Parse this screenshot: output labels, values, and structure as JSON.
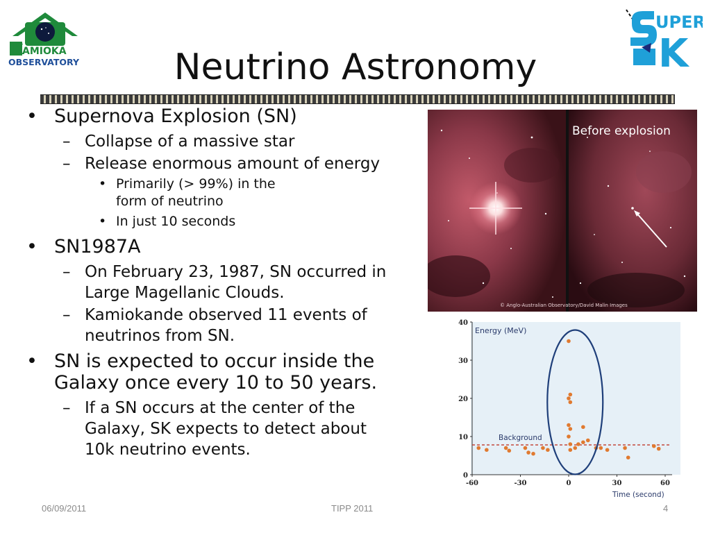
{
  "slide": {
    "title": "Neutrino Astronomy",
    "footer_date": "06/09/2011",
    "footer_center": "TIPP 2011",
    "page_number": "4"
  },
  "logos": {
    "left_text_1": "AMIOKA",
    "left_text_2": "OBSERVATORY",
    "right_text_1": "UPER",
    "right_text_2": "K"
  },
  "bullets": {
    "sn": "Supernova Explosion (SN)",
    "sn_sub1": "Collapse of a massive star",
    "sn_sub2": "Release enormous amount of energy",
    "sn_sub2_a": "Primarily (> 99%) in the form of neutrino",
    "sn_sub2_b": "In just 10 seconds",
    "sn1987a": "SN1987A",
    "sn1987a_sub1": "On February 23, 1987, SN occurred in Large Magellanic Clouds.",
    "sn1987a_sub2": "Kamiokande observed 11 events of neutrinos from SN.",
    "galaxy": "SN is expected to occur inside the Galaxy once every 10 to 50 years.",
    "galaxy_sub1": "If a SN occurs at the center of the Galaxy, SK expects to detect about 10k neutrino events."
  },
  "photo": {
    "label": "Before explosion",
    "credit": "© Anglo-Australian Observatory/David Malin Images"
  },
  "chart_data": {
    "type": "scatter",
    "ylabel": "Energy (MeV)",
    "xlabel": "Time (second)",
    "xlim": [
      -60,
      60
    ],
    "ylim": [
      0,
      40
    ],
    "xticks": [
      "-60",
      "-30",
      "0",
      "30",
      "60"
    ],
    "yticks": [
      "0",
      "10",
      "20",
      "30",
      "40"
    ],
    "background_label": "Background",
    "background_level": 7.8,
    "colors": {
      "points": "#e07a30",
      "background_line": "#c0392b",
      "ellipse": "#1f3f7a",
      "bg": "#e6f0f7"
    },
    "points": [
      [
        -56,
        7
      ],
      [
        -51,
        6.5
      ],
      [
        -39,
        7
      ],
      [
        -37,
        6.3
      ],
      [
        -27,
        7
      ],
      [
        -25,
        5.8
      ],
      [
        -22,
        5.5
      ],
      [
        -16,
        7
      ],
      [
        -13,
        6.5
      ],
      [
        0,
        35
      ],
      [
        0,
        20
      ],
      [
        1,
        19
      ],
      [
        1,
        21
      ],
      [
        0,
        13
      ],
      [
        1,
        12
      ],
      [
        0,
        10
      ],
      [
        1,
        8
      ],
      [
        1,
        6.5
      ],
      [
        4,
        7
      ],
      [
        6,
        8
      ],
      [
        9,
        12.5
      ],
      [
        9,
        8.5
      ],
      [
        12,
        9
      ],
      [
        17,
        7
      ],
      [
        20,
        7
      ],
      [
        24,
        6.5
      ],
      [
        35,
        7
      ],
      [
        37,
        4.5
      ],
      [
        53,
        7.5
      ],
      [
        56,
        6.8
      ]
    ]
  }
}
